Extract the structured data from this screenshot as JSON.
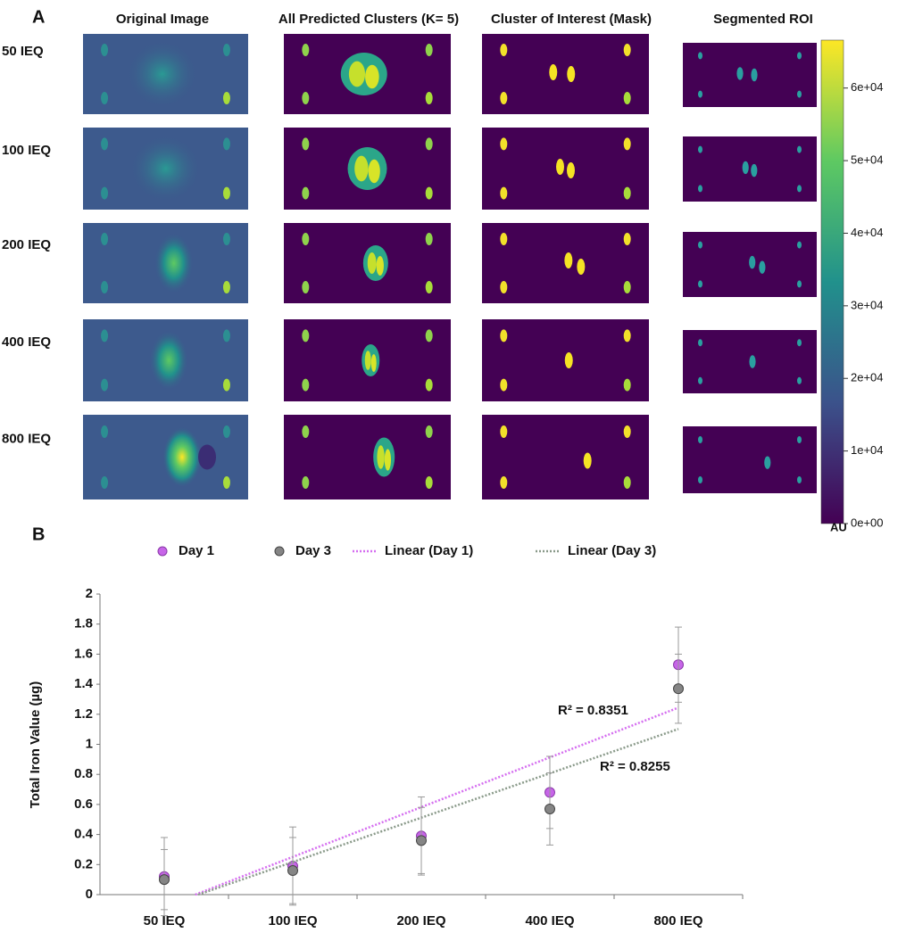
{
  "panel_a": {
    "label": "A",
    "columns": [
      "Original Image",
      "All Predicted Clusters (K= 5)",
      "Cluster of Interest (Mask)",
      "Segmented ROI"
    ],
    "rows": [
      "50 IEQ",
      "100 IEQ",
      "200 IEQ",
      "400 IEQ",
      "800 IEQ"
    ],
    "colorbar": {
      "lim": [
        0,
        66600
      ],
      "ticks": [
        {
          "value": 0,
          "label": "0e+00"
        },
        {
          "value": 10000,
          "label": "1e+04"
        },
        {
          "value": 20000,
          "label": "2e+04"
        },
        {
          "value": 30000,
          "label": "3e+04"
        },
        {
          "value": 40000,
          "label": "4e+04"
        },
        {
          "value": 50000,
          "label": "5e+04"
        },
        {
          "value": 60000,
          "label": "6e+04"
        }
      ],
      "label": "AU"
    }
  },
  "chart_data": {
    "type": "scatter",
    "panel_label": "B",
    "y_label": "Total Iron Value  (µg)",
    "categories": [
      "50 IEQ",
      "100 IEQ",
      "200 IEQ",
      "400 IEQ",
      "800 IEQ"
    ],
    "series": [
      {
        "name": "Day 1",
        "color": "#c765e8",
        "values": [
          0.12,
          0.19,
          0.39,
          0.68,
          1.53
        ],
        "errors": [
          0.26,
          0.26,
          0.26,
          0.24,
          0.25
        ],
        "trendline": {
          "name": "Linear (Day 1)",
          "color": "#d56ef0",
          "label": "R² = 0.8351"
        }
      },
      {
        "name": "Day 3",
        "color": "#858585",
        "values": [
          0.1,
          0.16,
          0.36,
          0.57,
          1.37
        ],
        "errors": [
          0.2,
          0.22,
          0.22,
          0.24,
          0.23
        ],
        "trendline": {
          "name": "Linear (Day 3)",
          "color": "#8a9a8a",
          "label": "R² = 0.8255"
        }
      }
    ],
    "ylim": [
      0,
      2
    ],
    "yticks": [
      0,
      0.2,
      0.4,
      0.6,
      0.8,
      1,
      1.2,
      1.4,
      1.6,
      1.8,
      2
    ],
    "grid": false
  }
}
